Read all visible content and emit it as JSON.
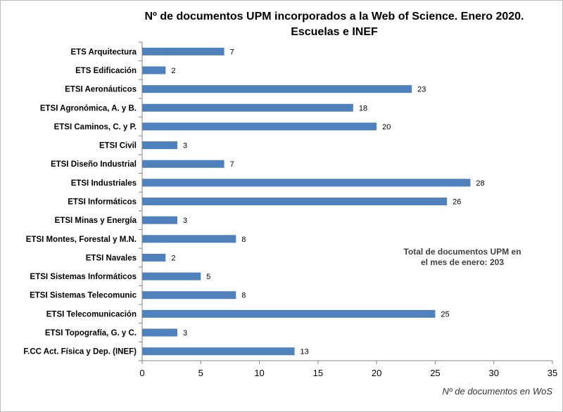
{
  "chart_data": {
    "type": "bar",
    "orientation": "horizontal",
    "title": "Nº de documentos UPM incorporados a la Web of Science. Enero 2020.",
    "subtitle": "Escuelas e INEF",
    "xlabel": "Nº de documentos en WoS",
    "ylabel": "",
    "xlim": [
      0,
      35
    ],
    "xticks": [
      0,
      5,
      10,
      15,
      20,
      25,
      30,
      35
    ],
    "grid": false,
    "bar_color": "#4f81bd",
    "categories": [
      "ETS Arquitectura",
      "ETS Edificación",
      "ETSI Aeronáuticos",
      "ETSI Agronómica, A. y B.",
      "ETSI Caminos, C. y P.",
      "ETSI Civil",
      "ETSI Diseño Industrial",
      "ETSI Industriales",
      "ETSI Informáticos",
      "ETSI Minas y Energía",
      "ETSI Montes, Forestal y M.N.",
      "ETSI Navales",
      "ETSI Sistemas Informáticos",
      "ETSI Sistemas Telecomunic",
      "ETSI Telecomunicación",
      "ETSI Topografía, G. y C.",
      "F.CC Act. Física y Dep. (INEF)"
    ],
    "values": [
      7,
      2,
      23,
      18,
      20,
      3,
      7,
      28,
      26,
      3,
      8,
      2,
      5,
      8,
      25,
      3,
      13
    ],
    "annotation": [
      "Total de documentos  UPM en",
      "el mes de enero: 203"
    ]
  }
}
